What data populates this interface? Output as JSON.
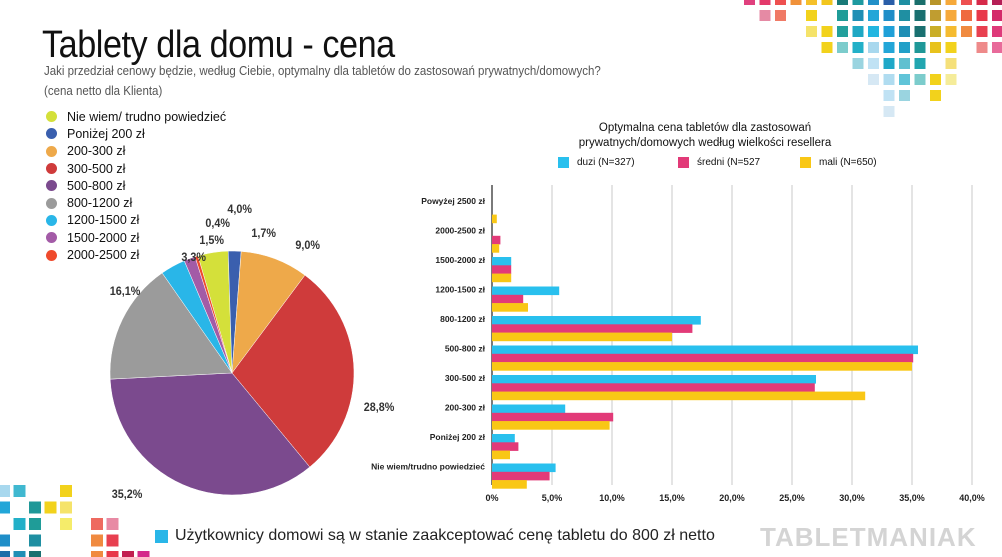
{
  "header": {
    "title": "Tablety dla domu - cena",
    "question": "Jaki przedział cenowy będzie, według Ciebie, optymalny dla tabletów do zastosowań prywatnych/domowych?",
    "note": "(cena netto dla Klienta)"
  },
  "footer": {
    "text": "Użytkownicy domowi są w stanie zaakceptować cenę tabletu do 800 zł netto",
    "logo": "TABLETMANIAK"
  },
  "chart_data": [
    {
      "type": "pie",
      "categories": [
        "Nie wiem/ trudno powiedzieć",
        "Poniżej 200 zł",
        "200-300 zł",
        "300-500 zł",
        "500-800 zł",
        "800-1200 zł",
        "1200-1500 zł",
        "1500-2000 zł",
        "2000-2500 zł"
      ],
      "values": [
        4.0,
        1.7,
        9.0,
        28.8,
        35.2,
        16.1,
        3.3,
        1.5,
        0.4
      ],
      "labels": [
        "4,0%",
        "1,7%",
        "9,0%",
        "28,8%",
        "35,2%",
        "16,1%",
        "3,3%",
        "1,5%",
        "0,4%"
      ],
      "colors": [
        "#d4e03a",
        "#3a5fae",
        "#eea94a",
        "#cf3b3b",
        "#7b4a8e",
        "#9b9b9b",
        "#29b6e8",
        "#a35ba7",
        "#ef4a2c"
      ],
      "legend": "left"
    },
    {
      "type": "bar",
      "orientation": "horizontal",
      "title": "Optymalna cena tabletów dla zastosowań prywatnych/domowych według wielkości resellera",
      "title_lines": [
        "Optymalna cena tabletów dla zastosowań",
        "prywatnych/domowych według wielkości resellera"
      ],
      "categories": [
        "Powyżej 2500 zł",
        "2000-2500 zł",
        "1500-2000 zł",
        "1200-1500 zł",
        "800-1200 zł",
        "500-800 zł",
        "300-500 zł",
        "200-300 zł",
        "Poniżej 200 zł",
        "Nie wiem/trudno powiedzieć"
      ],
      "series": [
        {
          "name": "duzi (N=327)",
          "color": "#29c0ee",
          "values": [
            0,
            0,
            1.6,
            5.6,
            17.4,
            35.5,
            27.0,
            6.1,
            1.9,
            5.3
          ]
        },
        {
          "name": "średni (N=527",
          "color": "#e23a78",
          "values": [
            0,
            0.7,
            1.6,
            2.6,
            16.7,
            35.1,
            26.9,
            10.1,
            2.2,
            4.8
          ]
        },
        {
          "name": "mali (N=650)",
          "color": "#f9c715",
          "values": [
            0.4,
            0.6,
            1.6,
            3.0,
            15.0,
            35.0,
            31.1,
            9.8,
            1.5,
            2.9
          ]
        }
      ],
      "xlim": [
        0,
        40
      ],
      "xticks": [
        "0%",
        "5,0%",
        "10,0%",
        "15,0%",
        "20,0%",
        "25,0%",
        "30,0%",
        "35,0%",
        "40,0%"
      ],
      "grid": true,
      "legend": "top"
    }
  ]
}
